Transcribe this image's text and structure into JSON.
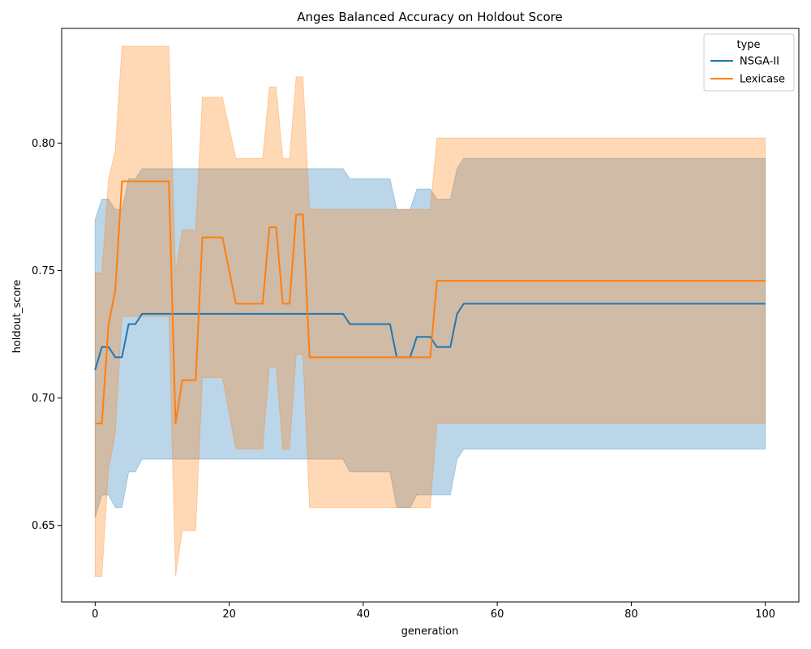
{
  "chart_data": {
    "type": "line",
    "title": "Anges Balanced Accuracy on Holdout Score",
    "xlabel": "generation",
    "ylabel": "holdout_score",
    "xlim": [
      -5,
      105
    ],
    "ylim": [
      0.62,
      0.845
    ],
    "xticks": [
      0,
      20,
      40,
      60,
      80,
      100
    ],
    "xtick_labels": [
      "0",
      "20",
      "40",
      "60",
      "80",
      "100"
    ],
    "yticks": [
      0.65,
      0.7,
      0.75,
      0.8
    ],
    "ytick_labels": [
      "0.65",
      "0.70",
      "0.75",
      "0.80"
    ],
    "grid": false,
    "legend": {
      "title": "type",
      "placement": "top-right"
    },
    "series": [
      {
        "name": "NSGA-II",
        "color": "#1f77b4",
        "x": [
          0,
          1,
          2,
          3,
          4,
          5,
          6,
          7,
          37,
          38,
          44,
          45,
          46,
          47,
          48,
          50,
          51,
          53,
          54,
          55,
          100
        ],
        "y": [
          0.711,
          0.72,
          0.72,
          0.716,
          0.716,
          0.729,
          0.729,
          0.733,
          0.733,
          0.729,
          0.729,
          0.716,
          0.716,
          0.716,
          0.724,
          0.724,
          0.72,
          0.72,
          0.733,
          0.737,
          0.737
        ],
        "lower": [
          0.653,
          0.662,
          0.662,
          0.657,
          0.657,
          0.671,
          0.671,
          0.676,
          0.676,
          0.671,
          0.671,
          0.657,
          0.657,
          0.657,
          0.662,
          0.662,
          0.662,
          0.662,
          0.676,
          0.68,
          0.68
        ],
        "upper": [
          0.77,
          0.778,
          0.778,
          0.774,
          0.774,
          0.786,
          0.786,
          0.79,
          0.79,
          0.786,
          0.786,
          0.774,
          0.774,
          0.774,
          0.782,
          0.782,
          0.778,
          0.778,
          0.79,
          0.794,
          0.794
        ]
      },
      {
        "name": "Lexicase",
        "color": "#ff7f0e",
        "x": [
          0,
          1,
          2,
          3,
          4,
          11,
          12,
          13,
          15,
          16,
          19,
          21,
          25,
          26,
          27,
          28,
          29,
          30,
          31,
          32,
          50,
          51,
          100
        ],
        "y": [
          0.69,
          0.69,
          0.729,
          0.742,
          0.785,
          0.785,
          0.69,
          0.707,
          0.707,
          0.763,
          0.763,
          0.737,
          0.737,
          0.767,
          0.767,
          0.737,
          0.737,
          0.772,
          0.772,
          0.716,
          0.716,
          0.746,
          0.746
        ],
        "lower": [
          0.63,
          0.63,
          0.672,
          0.686,
          0.732,
          0.732,
          0.63,
          0.648,
          0.648,
          0.708,
          0.708,
          0.68,
          0.68,
          0.712,
          0.712,
          0.68,
          0.68,
          0.717,
          0.717,
          0.657,
          0.657,
          0.69,
          0.69
        ],
        "upper": [
          0.749,
          0.749,
          0.786,
          0.797,
          0.838,
          0.838,
          0.749,
          0.766,
          0.766,
          0.818,
          0.818,
          0.794,
          0.794,
          0.822,
          0.822,
          0.794,
          0.794,
          0.826,
          0.826,
          0.774,
          0.774,
          0.802,
          0.802
        ]
      }
    ]
  }
}
